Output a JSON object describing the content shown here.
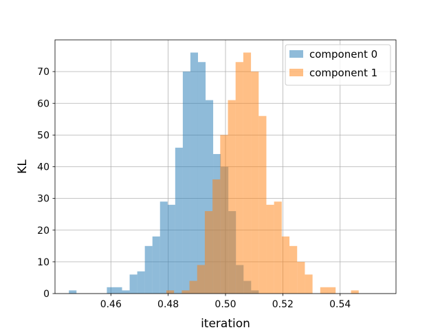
{
  "chart_data": {
    "type": "bar",
    "xlabel": "iteration",
    "ylabel": "KL",
    "xlim": [
      0.4405,
      0.5595
    ],
    "ylim": [
      0,
      80
    ],
    "grid": true,
    "legend_position": "top-right",
    "x_ticks": [
      0.46,
      0.48,
      0.5,
      0.52,
      0.54
    ],
    "x_tick_labels": [
      "0.46",
      "0.48",
      "0.50",
      "0.52",
      "0.54"
    ],
    "y_ticks": [
      0,
      10,
      20,
      30,
      40,
      50,
      60,
      70
    ],
    "y_tick_labels": [
      "0",
      "10",
      "20",
      "30",
      "40",
      "50",
      "60",
      "70"
    ],
    "series": [
      {
        "name": "component 0",
        "color": "#1f77b4",
        "alpha": 0.5,
        "bin_start": 0.44535,
        "bin_width": 0.00265,
        "counts": [
          1,
          0,
          0,
          0,
          0,
          2,
          2,
          1,
          6,
          7,
          15,
          18,
          29,
          28,
          46,
          70,
          76,
          73,
          61,
          44,
          40,
          26,
          9,
          4,
          1
        ]
      },
      {
        "name": "component 1",
        "color": "#ff7f0e",
        "alpha": 0.5,
        "bin_start": 0.47936,
        "bin_width": 0.002685,
        "counts": [
          1,
          0,
          1,
          4,
          9,
          26,
          36,
          50,
          61,
          73,
          76,
          70,
          56,
          28,
          29,
          18,
          15,
          10,
          6,
          0,
          2,
          2,
          0,
          0,
          1
        ]
      }
    ]
  }
}
